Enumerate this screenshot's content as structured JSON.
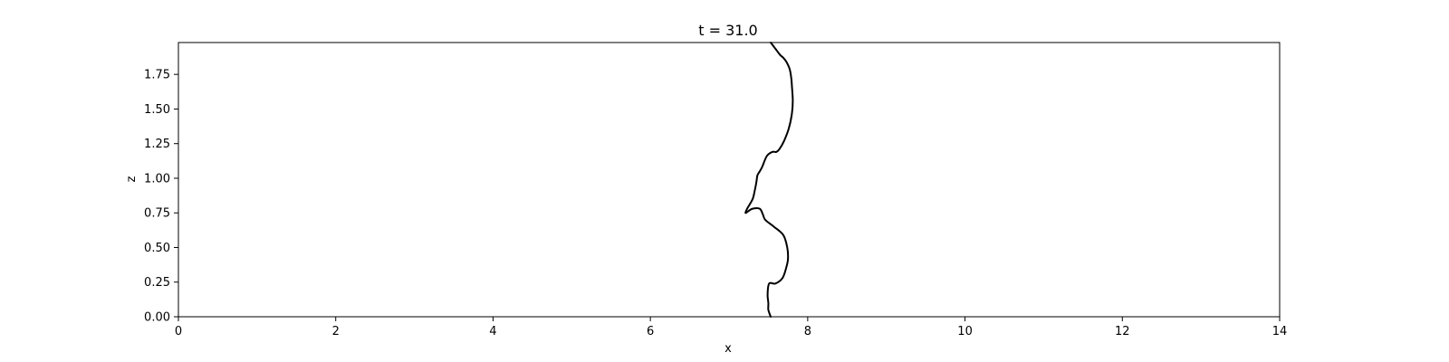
{
  "chart_data": {
    "type": "line",
    "title": "t = 31.0",
    "xlabel": "x",
    "ylabel": "z",
    "xlim": [
      0,
      14
    ],
    "ylim": [
      0,
      1.98
    ],
    "xticks": [
      0,
      2,
      4,
      6,
      8,
      10,
      12,
      14
    ],
    "xtick_labels": [
      "0",
      "2",
      "4",
      "6",
      "8",
      "10",
      "12",
      "14"
    ],
    "yticks": [
      0,
      0.25,
      0.5,
      0.75,
      1.0,
      1.25,
      1.5,
      1.75
    ],
    "ytick_labels": [
      "0.00",
      "0.25",
      "0.50",
      "0.75",
      "1.00",
      "1.25",
      "1.50",
      "1.75"
    ],
    "grid": false,
    "line_color": "#000000",
    "series": [
      {
        "x": [
          7.53,
          7.5,
          7.5,
          7.49,
          7.51,
          7.59,
          7.68,
          7.73,
          7.75,
          7.74,
          7.69,
          7.57,
          7.46,
          7.43,
          7.39,
          7.3,
          7.24,
          7.21,
          7.23,
          7.3,
          7.33,
          7.35,
          7.36,
          7.38,
          7.42,
          7.48,
          7.55,
          7.6,
          7.64,
          7.7,
          7.76,
          7.8,
          7.81,
          7.8,
          7.79,
          7.77,
          7.73,
          7.69,
          7.65,
          7.61,
          7.57,
          7.53
        ],
        "y": [
          0.0,
          0.05,
          0.1,
          0.16,
          0.24,
          0.24,
          0.28,
          0.36,
          0.42,
          0.5,
          0.59,
          0.65,
          0.7,
          0.74,
          0.78,
          0.78,
          0.76,
          0.75,
          0.78,
          0.85,
          0.92,
          0.98,
          1.02,
          1.04,
          1.08,
          1.16,
          1.19,
          1.19,
          1.21,
          1.27,
          1.36,
          1.47,
          1.56,
          1.66,
          1.73,
          1.79,
          1.84,
          1.87,
          1.89,
          1.92,
          1.95,
          1.98
        ]
      }
    ]
  }
}
